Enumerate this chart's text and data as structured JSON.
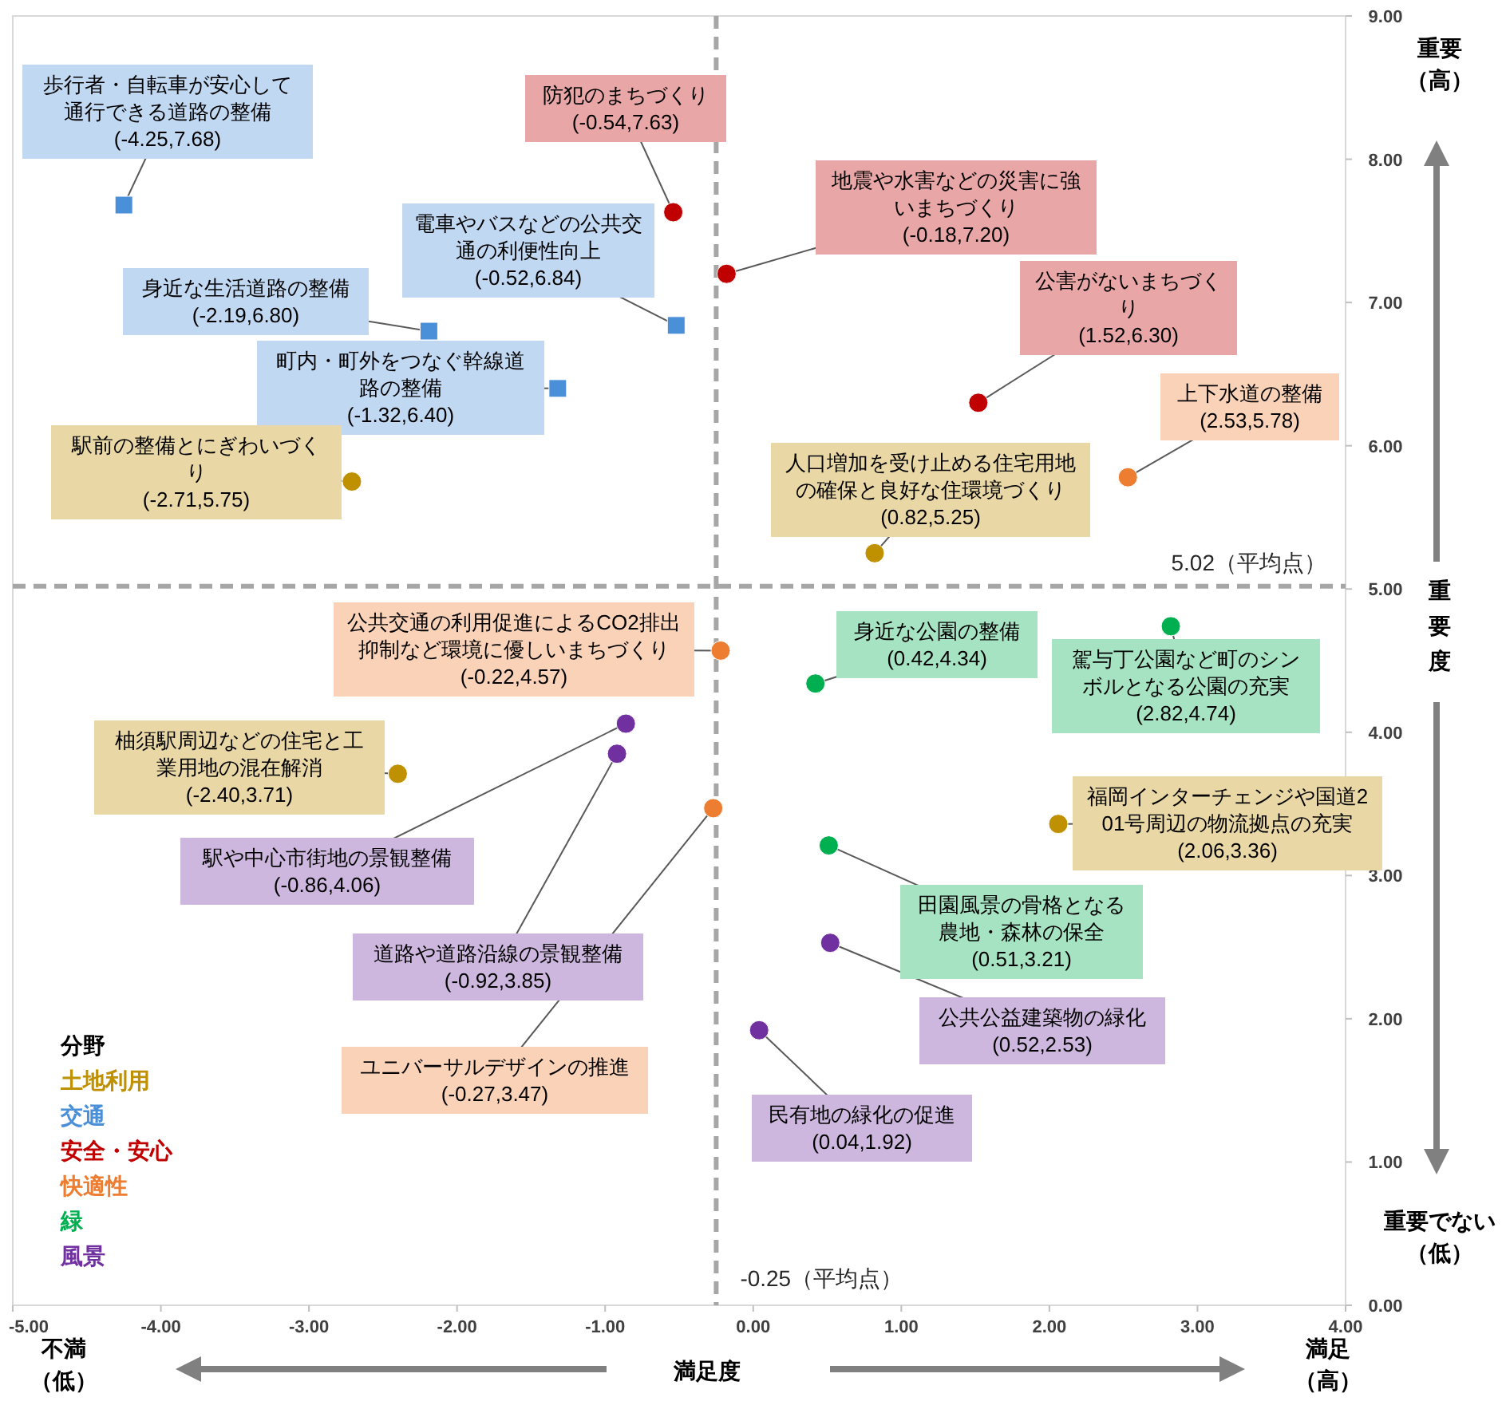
{
  "chart_data": {
    "type": "scatter",
    "xlabel": "満足度",
    "ylabel": "重要度",
    "legend_title": "分野",
    "legend": "bottom left",
    "grid": false,
    "xlim": [
      -5,
      4
    ],
    "ylim": [
      0,
      9
    ],
    "xticks": [
      {
        "value": -5,
        "label": "-5.00"
      },
      {
        "value": -4,
        "label": "-4.00"
      },
      {
        "value": -3,
        "label": "-3.00"
      },
      {
        "value": -2,
        "label": "-2.00"
      },
      {
        "value": -1,
        "label": "-1.00"
      },
      {
        "value": 0,
        "label": "0.00"
      },
      {
        "value": 1,
        "label": "1.00"
      },
      {
        "value": 2,
        "label": "2.00"
      },
      {
        "value": 3,
        "label": "3.00"
      },
      {
        "value": 4,
        "label": "4.00"
      }
    ],
    "yticks": [
      {
        "value": 0,
        "label": "0.00"
      },
      {
        "value": 1,
        "label": "1.00"
      },
      {
        "value": 2,
        "label": "2.00"
      },
      {
        "value": 3,
        "label": "3.00"
      },
      {
        "value": 4,
        "label": "4.00"
      },
      {
        "value": 5,
        "label": "5.00"
      },
      {
        "value": 6,
        "label": "6.00"
      },
      {
        "value": 7,
        "label": "7.00"
      },
      {
        "value": 8,
        "label": "8.00"
      },
      {
        "value": 9,
        "label": "9.00"
      }
    ],
    "series": [
      {
        "name": "土地利用",
        "color": "#bf9000",
        "marker": "circle",
        "x": [
          -2.71,
          0.82,
          -2.4,
          2.06
        ],
        "values": [
          5.75,
          5.25,
          3.71,
          3.36
        ]
      },
      {
        "name": "交通",
        "color": "#4a90d9",
        "marker": "square",
        "x": [
          -4.25,
          -2.19,
          -1.32,
          -0.52
        ],
        "values": [
          7.68,
          6.8,
          6.4,
          6.84
        ]
      },
      {
        "name": "安全・安心",
        "color": "#c00000",
        "marker": "circle",
        "x": [
          -0.54,
          -0.18,
          1.52
        ],
        "values": [
          7.63,
          7.2,
          6.3
        ]
      },
      {
        "name": "快適性",
        "color": "#ed7d31",
        "marker": "circle",
        "x": [
          2.53,
          -0.22,
          -0.27
        ],
        "values": [
          5.78,
          4.57,
          3.47
        ]
      },
      {
        "name": "緑",
        "color": "#00b050",
        "marker": "circle",
        "x": [
          0.42,
          2.82,
          0.51
        ],
        "values": [
          4.34,
          4.74,
          3.21
        ]
      },
      {
        "name": "風景",
        "color": "#7030a0",
        "marker": "circle",
        "x": [
          -0.86,
          -0.92,
          0.52,
          0.04
        ],
        "values": [
          4.06,
          3.85,
          2.53,
          1.92
        ]
      }
    ],
    "ref_lines": [
      {
        "axis": "x",
        "value": -0.25,
        "label": "-0.25（平均点）",
        "color": "#a6a6a6",
        "line_style": "dashed"
      },
      {
        "axis": "y",
        "value": 5.02,
        "label": "5.02（平均点）",
        "color": "#a6a6a6",
        "line_style": "dashed"
      }
    ],
    "annotations": [
      {
        "text": "歩行者・自転車が安心して通行できる道路の整備(-4.25,7.68)",
        "x": -4.25,
        "y": 7.68
      },
      {
        "text": "身近な生活道路の整備(-2.19,6.80)",
        "x": -2.19,
        "y": 6.8
      },
      {
        "text": "町内・町外をつなぐ幹線道路の整備(-1.32,6.40)",
        "x": -1.32,
        "y": 6.4
      },
      {
        "text": "電車やバスなどの公共交通の利便性向上(-0.52,6.84)",
        "x": -0.52,
        "y": 6.84
      },
      {
        "text": "防犯のまちづくり(-0.54,7.63)",
        "x": -0.54,
        "y": 7.63
      },
      {
        "text": "地震や水害などの災害に強いまちづくり(-0.18,7.20)",
        "x": -0.18,
        "y": 7.2
      },
      {
        "text": "公害がないまちづくり(1.52,6.30)",
        "x": 1.52,
        "y": 6.3
      },
      {
        "text": "上下水道の整備(2.53,5.78)",
        "x": 2.53,
        "y": 5.78
      },
      {
        "text": "人口増加を受け止める住宅用地の確保と良好な住環境づくり(0.82,5.25)",
        "x": 0.82,
        "y": 5.25
      },
      {
        "text": "駅前の整備とにぎわいづくり(-2.71,5.75)",
        "x": -2.71,
        "y": 5.75
      },
      {
        "text": "公共交通の利用促進によるCO2排出抑制など環境に優しいまちづくり(-0.22,4.57)",
        "x": -0.22,
        "y": 4.57
      },
      {
        "text": "柚須駅周辺などの住宅と工業用地の混在解消(-2.40,3.71)",
        "x": -2.4,
        "y": 3.71
      },
      {
        "text": "身近な公園の整備(0.42,4.34)",
        "x": 0.42,
        "y": 4.34
      },
      {
        "text": "駕与丁公園など町のシンボルとなる公園の充実(2.82,4.74)",
        "x": 2.82,
        "y": 4.74
      },
      {
        "text": "福岡インターチェンジや国道201号周辺の物流拠点の充実(2.06,3.36)",
        "x": 2.06,
        "y": 3.36
      },
      {
        "text": "駅や中心市街地の景観整備(-0.86,4.06)",
        "x": -0.86,
        "y": 4.06
      },
      {
        "text": "田園風景の骨格となる農地・森林の保全(0.51,3.21)",
        "x": 0.51,
        "y": 3.21
      },
      {
        "text": "道路や道路沿線の景観整備(-0.92,3.85)",
        "x": -0.92,
        "y": 3.85
      },
      {
        "text": "公共公益建築物の緑化(0.52,2.53)",
        "x": 0.52,
        "y": 2.53
      },
      {
        "text": "ユニバーサルデザインの推進(-0.27,3.47)",
        "x": -0.27,
        "y": 3.47
      },
      {
        "text": "民有地の緑化の促進(0.04,1.92)",
        "x": 0.04,
        "y": 1.92
      },
      "不満（低）",
      "満足（高）",
      "重要（高）",
      "重要でない（低）"
    ]
  }
}
